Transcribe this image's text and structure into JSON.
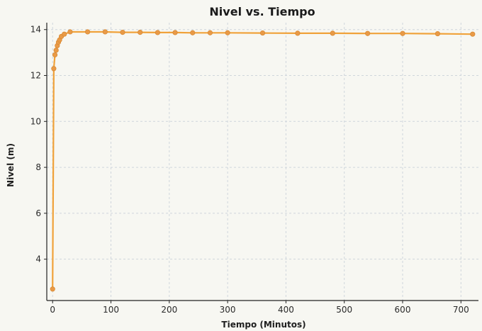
{
  "chart_data": {
    "type": "line",
    "title": "Nivel vs. Tiempo",
    "xlabel": "Tiempo (Minutos)",
    "ylabel": "Nivel (m)",
    "xlim": [
      -10,
      730
    ],
    "ylim": [
      2.2,
      14.3
    ],
    "xticks": [
      0,
      100,
      200,
      300,
      400,
      500,
      600,
      700
    ],
    "yticks": [
      4,
      6,
      8,
      10,
      12,
      14
    ],
    "grid": true,
    "series": [
      {
        "color": "#f0a23a",
        "marker_color": "#e99a47",
        "x": [
          0,
          2,
          4,
          6,
          8,
          10,
          12,
          15,
          20,
          30,
          60,
          90,
          120,
          150,
          180,
          210,
          240,
          270,
          300,
          360,
          420,
          480,
          540,
          600,
          660,
          720
        ],
        "y": [
          2.7,
          12.3,
          12.9,
          13.1,
          13.3,
          13.45,
          13.55,
          13.7,
          13.8,
          13.9,
          13.9,
          13.9,
          13.88,
          13.88,
          13.87,
          13.87,
          13.86,
          13.86,
          13.86,
          13.85,
          13.84,
          13.84,
          13.83,
          13.83,
          13.82,
          13.8
        ]
      }
    ]
  }
}
